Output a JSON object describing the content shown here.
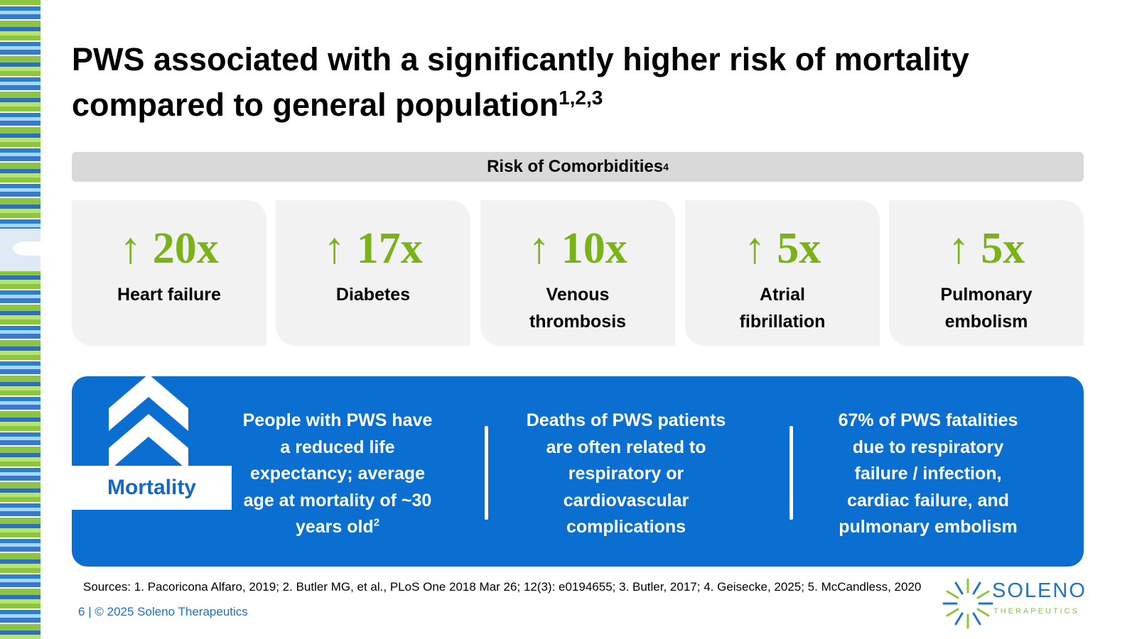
{
  "colors": {
    "accent_green": "#7ab317",
    "mortality_blue": "#0a6fd1",
    "risk_bar_gray": "#d9d9d9",
    "card_gray": "#f2f2f2",
    "brand_blue": "#1f73c8"
  },
  "title": {
    "line1": "PWS associated with a significantly higher risk of mortality",
    "line2": "compared to general population",
    "sup": "1,2,3"
  },
  "risk_header": {
    "label": "Risk of Comorbidities",
    "sup": "4"
  },
  "comorbidities": [
    {
      "arrow": "↑",
      "value": "20x",
      "label_line1": "Heart failure",
      "label_line2": ""
    },
    {
      "arrow": "↑",
      "value": "17x",
      "label_line1": "Diabetes",
      "label_line2": ""
    },
    {
      "arrow": "↑",
      "value": "10x",
      "label_line1": "Venous",
      "label_line2": "thrombosis"
    },
    {
      "arrow": "↑",
      "value": "5x",
      "label_line1": "Atrial",
      "label_line2": "fibrillation"
    },
    {
      "arrow": "↑",
      "value": "5x",
      "label_line1": "Pulmonary",
      "label_line2": "embolism"
    }
  ],
  "mortality": {
    "label": "Mortality",
    "icon": "double-chevron-up-icon",
    "col1": {
      "lines": [
        "People with PWS have",
        "a reduced life",
        "expectancy; average",
        "age at mortality of ~30",
        "years old"
      ],
      "sup": "2"
    },
    "col2": {
      "lines": [
        "Deaths of PWS patients",
        "are often related to",
        "respiratory or",
        "cardiovascular",
        "complications"
      ]
    },
    "col3": {
      "lines": [
        "67% of PWS fatalities",
        "due to respiratory",
        "failure / infection,",
        "cardiac failure, and",
        "pulmonary embolism"
      ]
    }
  },
  "sources": "Sources: 1. Pacoricona Alfaro, 2019; 2. Butler MG, et al., PLoS One 2018 Mar 26; 12(3): e0194655; 3. Butler, 2017; 4. Geisecke, 2025; 5. McCandless, 2020",
  "footer": {
    "page": "6",
    "separator": "|",
    "copyright": "© 2025 Soleno Therapeutics"
  },
  "logo": {
    "name": "SOLENO",
    "sub": "THERAPEUTICS"
  }
}
